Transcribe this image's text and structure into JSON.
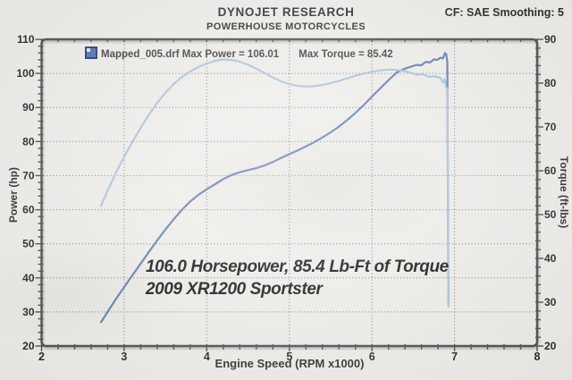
{
  "header": {
    "title": "DYNOJET RESEARCH",
    "subtitle": "POWERHOUSE MOTORCYCLES",
    "cf_smoothing": "CF: SAE  Smoothing: 5"
  },
  "legend": {
    "run_label": "Mapped_005.drf Max Power = 106.01",
    "torque_label": "Max Torque = 85.42",
    "swatch_color": "#4a6fae"
  },
  "axes": {
    "power_label": "Power (hp)",
    "torque_label": "Torque (ft-lbs)",
    "rpm_label": "Engine Speed (RPM x1000)"
  },
  "annotation": {
    "line1": "106.0 Horsepower, 85.4 Lb-Ft of Torque",
    "line2": "2009 XR1200 Sportster"
  },
  "chart_data": {
    "type": "line",
    "title": "DYNOJET RESEARCH",
    "subtitle": "POWERHOUSE MOTORCYCLES",
    "correction": "CF: SAE",
    "smoothing": 5,
    "max_power_hp": 106.01,
    "max_torque_ftlb": 85.42,
    "x_axis": {
      "label": "Engine Speed (RPM x1000)",
      "min": 2,
      "max": 8,
      "major_ticks": [
        2,
        3,
        4,
        5,
        6,
        7,
        8
      ],
      "minor_step": 0.2
    },
    "y_left": {
      "label": "Power (hp)",
      "min": 20,
      "max": 110,
      "major_ticks": [
        110,
        100,
        90,
        80,
        70,
        60,
        50,
        40,
        30,
        20
      ],
      "minor_step": 2
    },
    "y_right": {
      "label": "Torque (ft-lbs)",
      "min": 20,
      "max": 90,
      "major_ticks": [
        90,
        80,
        70,
        60,
        50,
        40,
        30,
        20
      ],
      "minor_step": 2
    },
    "grid": {
      "horizontal_at_power": [
        100,
        90,
        80,
        70,
        60,
        50,
        40,
        30
      ],
      "vertical_at_rpm": [
        3,
        4,
        5,
        6,
        7
      ]
    },
    "series": [
      {
        "name": "Power",
        "axis": "left",
        "color": "#5f7cab",
        "x": [
          2.72,
          2.8,
          2.9,
          3.0,
          3.1,
          3.2,
          3.3,
          3.4,
          3.5,
          3.6,
          3.7,
          3.8,
          3.9,
          4.0,
          4.1,
          4.2,
          4.3,
          4.4,
          4.5,
          4.6,
          4.7,
          4.8,
          4.9,
          5.0,
          5.1,
          5.2,
          5.3,
          5.4,
          5.5,
          5.6,
          5.7,
          5.8,
          5.9,
          6.0,
          6.1,
          6.2,
          6.3,
          6.4,
          6.5,
          6.55,
          6.6,
          6.65,
          6.7,
          6.75,
          6.79,
          6.83,
          6.86,
          6.885,
          6.9,
          6.912,
          6.925
        ],
        "y": [
          27,
          30,
          33.8,
          37.3,
          40.8,
          44.2,
          47.6,
          51,
          54.2,
          57.2,
          60,
          62.4,
          64.4,
          66,
          67.5,
          69,
          70.2,
          71,
          71.6,
          72.2,
          73,
          74,
          75.2,
          76.3,
          77.4,
          78.6,
          79.8,
          81.2,
          82.7,
          84.4,
          86.3,
          88.4,
          90.7,
          93.2,
          95.6,
          98,
          100.3,
          101.4,
          102.2,
          102.5,
          102.4,
          103.4,
          103.2,
          104.1,
          104,
          104.6,
          104.4,
          106,
          105.6,
          103.4,
          33
        ]
      },
      {
        "name": "Torque",
        "axis": "right",
        "color": "#abc3e0",
        "x": [
          2.72,
          2.8,
          2.9,
          3.0,
          3.1,
          3.2,
          3.3,
          3.4,
          3.5,
          3.6,
          3.7,
          3.8,
          3.9,
          4.0,
          4.1,
          4.2,
          4.3,
          4.4,
          4.5,
          4.6,
          4.7,
          4.8,
          4.9,
          5.0,
          5.1,
          5.2,
          5.3,
          5.4,
          5.5,
          5.6,
          5.7,
          5.8,
          5.9,
          6.0,
          6.1,
          6.2,
          6.3,
          6.4,
          6.45,
          6.55,
          6.6,
          6.7,
          6.75,
          6.83,
          6.86,
          6.88,
          6.9,
          6.915,
          6.925
        ],
        "y": [
          52,
          55.5,
          59.5,
          63.2,
          66.6,
          69.8,
          72.8,
          75.5,
          77.8,
          79.8,
          81.4,
          82.7,
          83.7,
          84.5,
          85.1,
          85.4,
          85.3,
          84.9,
          84.2,
          83.3,
          82.3,
          81.3,
          80.4,
          79.8,
          79.4,
          79.2,
          79.3,
          79.6,
          80,
          80.5,
          81.1,
          81.7,
          82.2,
          82.6,
          82.9,
          83.1,
          83,
          82.7,
          82.5,
          81.9,
          82.1,
          81.4,
          81.6,
          81.2,
          80.2,
          80.9,
          79,
          78.6,
          29
        ]
      }
    ]
  }
}
